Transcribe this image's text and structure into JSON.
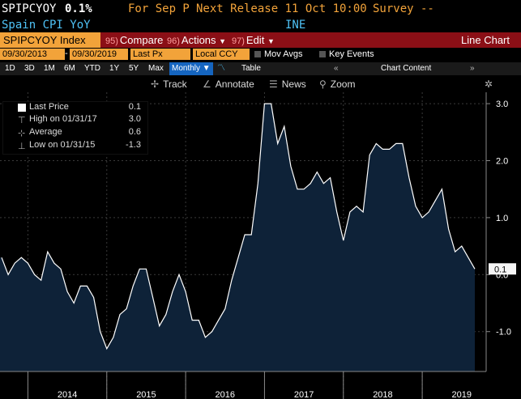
{
  "header": {
    "ticker": "SPIPCYOY",
    "last_value": "0.1%",
    "period_label": "For Sep P",
    "next_release": "Next Release 11 Oct 10:00",
    "survey": "Survey --",
    "name": "Spain CPI YoY",
    "source": "INE"
  },
  "toolbar": {
    "security": "SPIPCYOY Index",
    "compare_num": "95)",
    "compare": "Compare",
    "actions_num": "96)",
    "actions": "Actions",
    "edit_num": "97)",
    "edit": "Edit",
    "chart_type": "Line Chart"
  },
  "options": {
    "start_date": "09/30/2013",
    "end_date": "09/30/2019",
    "field": "Last Px",
    "currency": "Local CCY",
    "mov_avgs": "Mov Avgs",
    "key_events": "Key Events"
  },
  "periods": [
    "1D",
    "3D",
    "1M",
    "6M",
    "YTD",
    "1Y",
    "5Y",
    "Max"
  ],
  "frequency": "Monthly",
  "table_label": "Table",
  "chart_content_label": "Chart Content",
  "tools": {
    "track": "Track",
    "annotate": "Annotate",
    "news": "News",
    "zoom": "Zoom"
  },
  "legend": {
    "last_price_label": "Last Price",
    "last_price_value": "0.1",
    "high_label": "High on 01/31/17",
    "high_value": "3.0",
    "average_label": "Average",
    "average_value": "0.6",
    "low_label": "Low on 01/31/15",
    "low_value": "-1.3"
  },
  "colors": {
    "line": "#ffffff",
    "fill": "#0e2238",
    "background": "#000000",
    "accent_orange": "#f2a33a",
    "toolbar_red": "#8b0f16",
    "grid": "#3a3a3a"
  },
  "chart_data": {
    "type": "area",
    "title": "",
    "xlabel": "",
    "ylabel": "",
    "ylim": [
      -1.7,
      3.2
    ],
    "yticks": [
      -1.0,
      0.0,
      1.0,
      2.0,
      3.0
    ],
    "ytick_labels": [
      "-1.0",
      "0.0",
      "1.0",
      "2.0",
      "3.0"
    ],
    "x_tick_labels": [
      "2014",
      "2015",
      "2016",
      "2017",
      "2018",
      "2019"
    ],
    "last_value_label": "0.1",
    "grid": true,
    "x": [
      "2013-09",
      "2013-10",
      "2013-11",
      "2013-12",
      "2014-01",
      "2014-02",
      "2014-03",
      "2014-04",
      "2014-05",
      "2014-06",
      "2014-07",
      "2014-08",
      "2014-09",
      "2014-10",
      "2014-11",
      "2014-12",
      "2015-01",
      "2015-02",
      "2015-03",
      "2015-04",
      "2015-05",
      "2015-06",
      "2015-07",
      "2015-08",
      "2015-09",
      "2015-10",
      "2015-11",
      "2015-12",
      "2016-01",
      "2016-02",
      "2016-03",
      "2016-04",
      "2016-05",
      "2016-06",
      "2016-07",
      "2016-08",
      "2016-09",
      "2016-10",
      "2016-11",
      "2016-12",
      "2017-01",
      "2017-02",
      "2017-03",
      "2017-04",
      "2017-05",
      "2017-06",
      "2017-07",
      "2017-08",
      "2017-09",
      "2017-10",
      "2017-11",
      "2017-12",
      "2018-01",
      "2018-02",
      "2018-03",
      "2018-04",
      "2018-05",
      "2018-06",
      "2018-07",
      "2018-08",
      "2018-09",
      "2018-10",
      "2018-11",
      "2018-12",
      "2019-01",
      "2019-02",
      "2019-03",
      "2019-04",
      "2019-05",
      "2019-06",
      "2019-07",
      "2019-08",
      "2019-09"
    ],
    "values": [
      0.3,
      0.0,
      0.2,
      0.3,
      0.2,
      0.0,
      -0.1,
      0.4,
      0.2,
      0.1,
      -0.3,
      -0.5,
      -0.2,
      -0.2,
      -0.4,
      -1.0,
      -1.3,
      -1.1,
      -0.7,
      -0.6,
      -0.2,
      0.1,
      0.1,
      -0.4,
      -0.9,
      -0.7,
      -0.3,
      0.0,
      -0.3,
      -0.8,
      -0.8,
      -1.1,
      -1.0,
      -0.8,
      -0.6,
      -0.1,
      0.3,
      0.7,
      0.7,
      1.6,
      3.0,
      3.0,
      2.3,
      2.6,
      1.9,
      1.5,
      1.5,
      1.6,
      1.8,
      1.6,
      1.7,
      1.1,
      0.6,
      1.1,
      1.2,
      1.1,
      2.1,
      2.3,
      2.2,
      2.2,
      2.3,
      2.3,
      1.7,
      1.2,
      1.0,
      1.1,
      1.3,
      1.5,
      0.8,
      0.4,
      0.5,
      0.3,
      0.1
    ],
    "series": [
      {
        "values_ref": "values"
      }
    ]
  }
}
